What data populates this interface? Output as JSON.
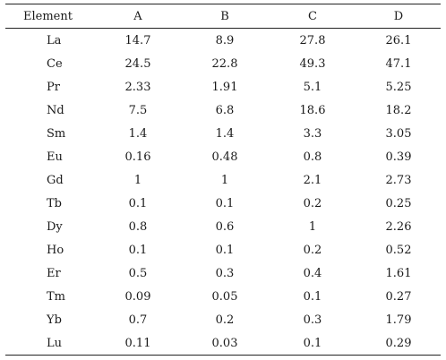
{
  "table": {
    "headers": [
      "Element",
      "A",
      "B",
      "C",
      "D"
    ],
    "rows": [
      [
        "La",
        "14.7",
        "8.9",
        "27.8",
        "26.1"
      ],
      [
        "Ce",
        "24.5",
        "22.8",
        "49.3",
        "47.1"
      ],
      [
        "Pr",
        "2.33",
        "1.91",
        "5.1",
        "5.25"
      ],
      [
        "Nd",
        "7.5",
        "6.8",
        "18.6",
        "18.2"
      ],
      [
        "Sm",
        "1.4",
        "1.4",
        "3.3",
        "3.05"
      ],
      [
        "Eu",
        "0.16",
        "0.48",
        "0.8",
        "0.39"
      ],
      [
        "Gd",
        "1",
        "1",
        "2.1",
        "2.73"
      ],
      [
        "Tb",
        "0.1",
        "0.1",
        "0.2",
        "0.25"
      ],
      [
        "Dy",
        "0.8",
        "0.6",
        "1",
        "2.26"
      ],
      [
        "Ho",
        "0.1",
        "0.1",
        "0.2",
        "0.52"
      ],
      [
        "Er",
        "0.5",
        "0.3",
        "0.4",
        "1.61"
      ],
      [
        "Tm",
        "0.09",
        "0.05",
        "0.1",
        "0.27"
      ],
      [
        "Yb",
        "0.7",
        "0.2",
        "0.3",
        "1.79"
      ],
      [
        "Lu",
        "0.11",
        "0.03",
        "0.1",
        "0.29"
      ]
    ]
  }
}
